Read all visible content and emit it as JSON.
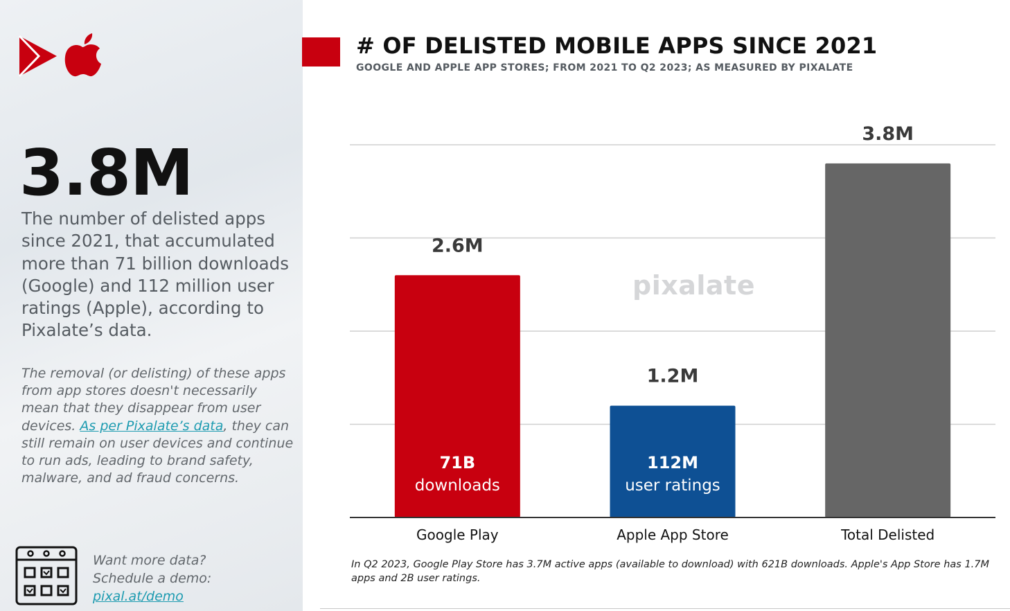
{
  "left": {
    "big_stat": "3.8M",
    "lead": "The number of delisted apps since 2021, that accumulated more than 71 billion downloads (Google) and 112 million user ratings (Apple), according to Pixalate’s data.",
    "note_part1": "The removal (or delisting) of these apps from app stores doesn't necessarily mean that they disappear from user devices. ",
    "note_link": "As per Pixalate’s data",
    "note_part2": ", they can still remain on user devices and continue to run ads, leading to brand safety, malware, and ad fraud concerns.",
    "demo_line1": "Want more data?",
    "demo_line2": "Schedule a demo:",
    "demo_link": "pixal.at/demo"
  },
  "header": {
    "title": "# OF DELISTED MOBILE APPS SINCE 2021",
    "subtitle": "GOOGLE AND APPLE APP STORES; FROM 2021 TO Q2 2023; AS MEASURED BY PIXALATE"
  },
  "watermark": "pixalate",
  "footnote": "In Q2 2023, Google Play Store has 3.7M active apps (available to download) with 621B downloads. Apple's App Store has 1.7M apps and 2B user ratings.",
  "colors": {
    "brand_red": "#c8000f",
    "google": "#c8000f",
    "apple": "#0e5094",
    "total": "#666666"
  },
  "icons": [
    "play-store-icon",
    "apple-icon",
    "calendar-icon"
  ],
  "chart_data": {
    "type": "bar",
    "categories": [
      "Google Play",
      "Apple App Store",
      "Total Delisted"
    ],
    "values": [
      2.6,
      1.2,
      3.8
    ],
    "value_labels": [
      "2.6M",
      "1.2M",
      "3.8M"
    ],
    "bar_colors": [
      "#c8000f",
      "#0e5094",
      "#666666"
    ],
    "inner_value_labels": [
      "71B",
      "112M",
      ""
    ],
    "inner_sub_labels": [
      "downloads",
      "user ratings",
      ""
    ],
    "ylim": [
      0,
      4
    ],
    "grid": true,
    "ylabel": "",
    "xlabel": ""
  }
}
